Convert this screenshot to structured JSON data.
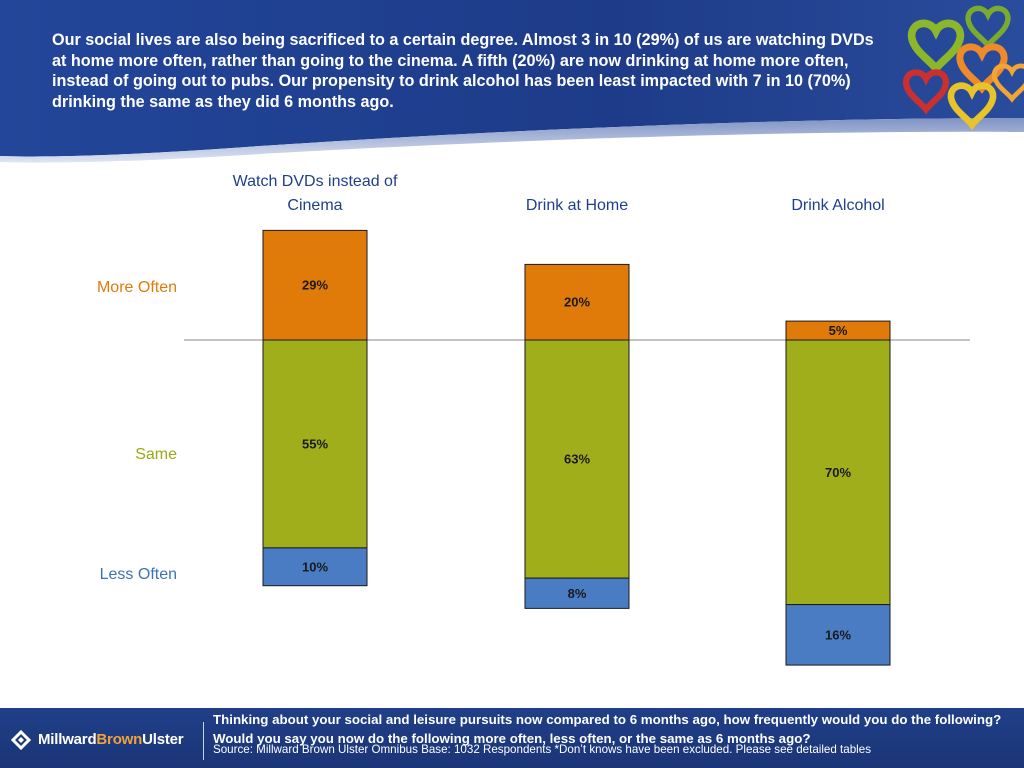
{
  "header": {
    "text": "Our social lives are also being sacrificed to a certain degree.  Almost 3 in 10 (29%) of us are watching DVDs at home more often, rather than going to the cinema.  A fifth (20%) are now drinking at home more often, instead of going out to pubs.  Our propensity to drink alcohol has been least impacted with 7 in 10 (70%) drinking the same as they did 6 months ago."
  },
  "chart_data": {
    "type": "bar",
    "stacked": true,
    "title": "",
    "xlabel": "",
    "ylabel": "",
    "categories": [
      [
        "Watch DVDs instead of",
        "Cinema"
      ],
      [
        "Drink at Home"
      ],
      [
        "Drink Alcohol"
      ]
    ],
    "series": [
      {
        "name": "More Often",
        "values": [
          29,
          20,
          5
        ],
        "labels": [
          "29%",
          "20%",
          "5%"
        ],
        "color": "#e07b0a"
      },
      {
        "name": "Same",
        "values": [
          55,
          63,
          70
        ],
        "labels": [
          "55%",
          "63%",
          "70%"
        ],
        "color": "#a1ae1c"
      },
      {
        "name": "Less Often",
        "values": [
          10,
          8,
          16
        ],
        "labels": [
          "10%",
          "8%",
          "16%"
        ],
        "color": "#4a7cc3"
      }
    ],
    "row_labels": [
      {
        "text": "More Often",
        "color": "#e07b0a"
      },
      {
        "text": "Same",
        "color": "#9aa915"
      },
      {
        "text": "Less Often",
        "color": "#3e72b7"
      }
    ],
    "category_label_color": "#1f3f8b",
    "baseline_between": [
      "More Often",
      "Same"
    ],
    "grid": false
  },
  "footer": {
    "logo_part1": "Millward",
    "logo_part2": "Brown",
    "logo_part3": "Ulster",
    "question": "Thinking about your social and leisure pursuits now compared to 6 months ago, how frequently would you do the following? Would you say you now do the following more often, less often, or the same as 6 months ago?",
    "source": "Source: Millward Brown Ulster Omnibus  Base: 1032 Respondents  *Don’t knows have been excluded.  Please see detailed tables"
  },
  "colors": {
    "header_blue": "#1e3c8c",
    "footer_blue": "#1f3b84",
    "brand_orange": "#f0a23a"
  },
  "icons": [
    "heart-logo-icon",
    "millward-brown-mark-icon"
  ]
}
